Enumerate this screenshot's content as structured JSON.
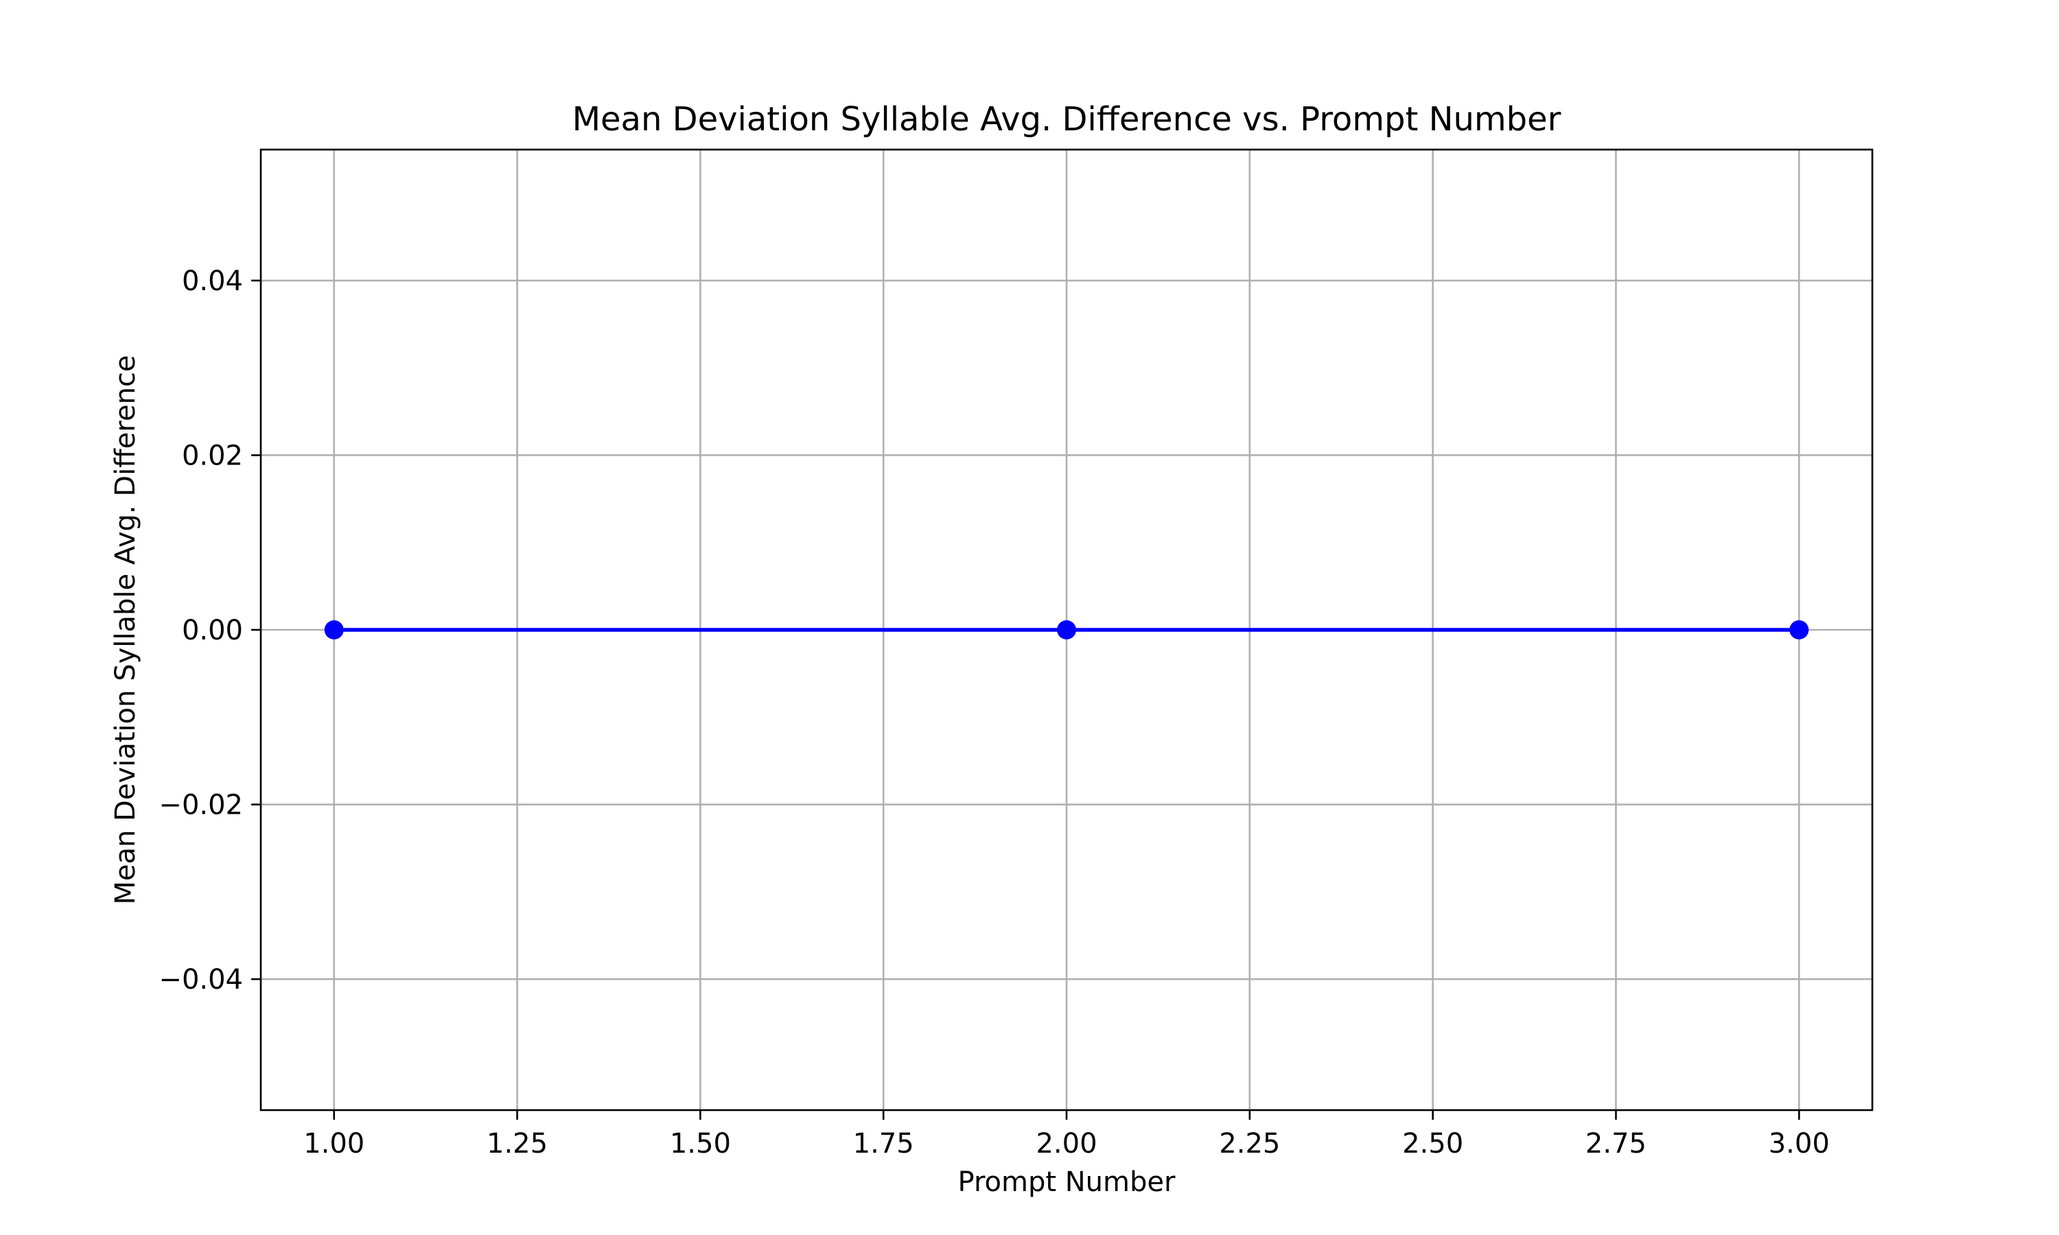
{
  "chart_data": {
    "type": "line",
    "title": "Mean Deviation Syllable Avg. Difference vs. Prompt Number",
    "xlabel": "Prompt Number",
    "ylabel": "Mean Deviation Syllable Avg. Difference",
    "xlim": [
      0.9,
      3.1
    ],
    "ylim": [
      -0.055,
      0.055
    ],
    "x_ticks": [
      1.0,
      1.25,
      1.5,
      1.75,
      2.0,
      2.25,
      2.5,
      2.75,
      3.0
    ],
    "x_tick_labels": [
      "1.00",
      "1.25",
      "1.50",
      "1.75",
      "2.00",
      "2.25",
      "2.50",
      "2.75",
      "3.00"
    ],
    "y_ticks": [
      -0.04,
      -0.02,
      0.0,
      0.02,
      0.04
    ],
    "y_tick_labels": [
      "−0.04",
      "−0.02",
      "0.00",
      "0.02",
      "0.04"
    ],
    "grid": true,
    "series": [
      {
        "x": [
          1,
          2,
          3
        ],
        "values": [
          0.0,
          0.0,
          0.0
        ],
        "color": "#0000ff",
        "marker": "circle"
      }
    ]
  }
}
